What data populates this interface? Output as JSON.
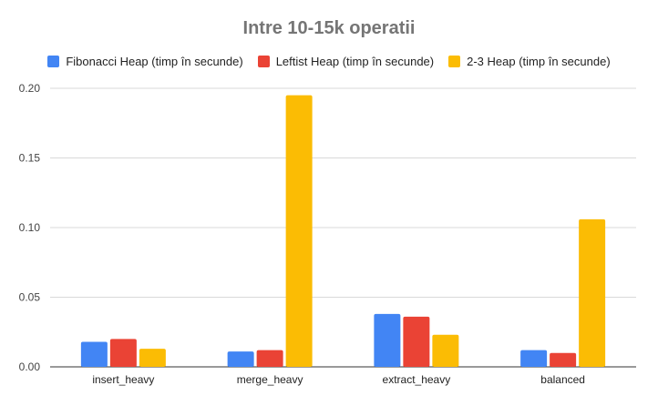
{
  "colors": {
    "fibonacci": "#4285F4",
    "leftist": "#EA4335",
    "twothree": "#FBBC04",
    "grid": "#d9d9d9",
    "axis": "#333333",
    "title": "#757575"
  },
  "chart_data": {
    "type": "bar",
    "title": "Intre 10-15k operatii",
    "xlabel": "",
    "ylabel": "",
    "categories": [
      "insert_heavy",
      "merge_heavy",
      "extract_heavy",
      "balanced"
    ],
    "series": [
      {
        "name": "Fibonacci Heap (timp în secunde)",
        "values": [
          0.018,
          0.011,
          0.038,
          0.012
        ]
      },
      {
        "name": "Leftist Heap (timp în secunde)",
        "values": [
          0.02,
          0.012,
          0.036,
          0.01
        ]
      },
      {
        "name": "2-3 Heap (timp în secunde)",
        "values": [
          0.013,
          0.195,
          0.023,
          0.106
        ]
      }
    ],
    "ylim": [
      0,
      0.2
    ],
    "yticks": [
      "0.00",
      "0.05",
      "0.10",
      "0.15",
      "0.20"
    ],
    "grid": true,
    "legend_position": "top"
  }
}
